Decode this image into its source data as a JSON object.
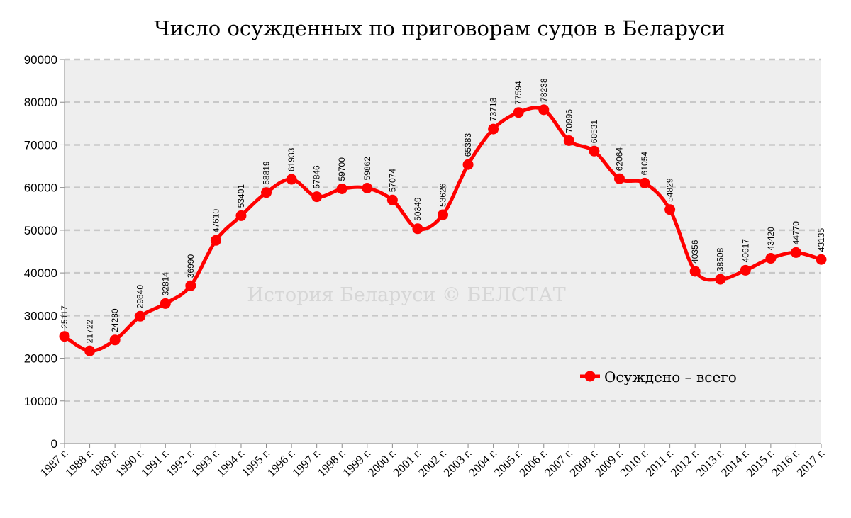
{
  "chart_data": {
    "type": "line",
    "title": "Число осужденных по приговорам судов в Беларуси",
    "watermark": "История Беларуси © БЕЛСТАТ",
    "categories": [
      "1987 г.",
      "1988 г.",
      "1989 г.",
      "1990 г.",
      "1991 г.",
      "1992 г.",
      "1993 г.",
      "1994 г.",
      "1995 г.",
      "1996 г.",
      "1997 г.",
      "1998 г.",
      "1999 г.",
      "2000 г.",
      "2001 г.",
      "2002 г.",
      "2003 г.",
      "2004 г.",
      "2005 г.",
      "2006 г.",
      "2007 г.",
      "2008 г.",
      "2009 г.",
      "2010 г.",
      "2011 г.",
      "2012 г.",
      "2013 г.",
      "2014 г.",
      "2015 г.",
      "2016 г.",
      "2017 г."
    ],
    "series": [
      {
        "name": "Осуждено – всего",
        "color": "#ff0000",
        "values": [
          25117,
          21722,
          24280,
          29840,
          32814,
          36990,
          47610,
          53401,
          58819,
          61933,
          57846,
          59700,
          59862,
          57074,
          50349,
          53626,
          65383,
          73713,
          77594,
          78238,
          70996,
          68531,
          62064,
          61054,
          54829,
          40356,
          38508,
          40617,
          43420,
          44770,
          43135
        ]
      }
    ],
    "ylim": [
      0,
      90000
    ],
    "yticks": [
      "0",
      "10000",
      "20000",
      "30000",
      "40000",
      "50000",
      "60000",
      "70000",
      "80000",
      "90000"
    ],
    "xlabel": "",
    "ylabel": "",
    "grid": true,
    "legend_position": "bottom-right",
    "plot_background": "#eeeeee",
    "grid_color": "#c8c8c8"
  }
}
